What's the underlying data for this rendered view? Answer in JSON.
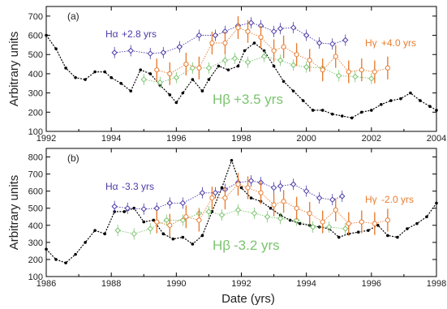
{
  "xlabel": "Date (yrs)",
  "chart_data": [
    {
      "type": "line",
      "panel_label": "(a)",
      "title": "",
      "xlabel": "",
      "ylabel": "Arbitrary units",
      "xlim": [
        1992,
        2004
      ],
      "ylim": [
        100,
        750
      ],
      "xticks": [
        1992,
        1994,
        1996,
        1998,
        2000,
        2002,
        2004
      ],
      "yticks": [
        100,
        200,
        300,
        400,
        500,
        600,
        700
      ],
      "grid": false,
      "series": [
        {
          "name": "",
          "color": "#000000",
          "marker": "filled-dot",
          "x": [
            1992.0,
            1992.3,
            1992.6,
            1992.9,
            1993.2,
            1993.5,
            1993.8,
            1994.0,
            1994.3,
            1994.6,
            1994.9,
            1995.2,
            1995.5,
            1995.8,
            1996.0,
            1996.2,
            1996.5,
            1996.8,
            1997.0,
            1997.3,
            1997.6,
            1997.9,
            1998.1,
            1998.4,
            1998.7,
            1999.0,
            1999.3,
            1999.6,
            1999.9,
            2000.2,
            2000.5,
            2000.8,
            2001.1,
            2001.4,
            2001.7,
            2002.0,
            2002.3,
            2002.6,
            2002.9,
            2003.2,
            2003.5,
            2003.8,
            2004.0
          ],
          "y": [
            600,
            530,
            430,
            380,
            370,
            410,
            410,
            380,
            350,
            310,
            420,
            400,
            340,
            290,
            250,
            300,
            370,
            310,
            370,
            440,
            420,
            440,
            520,
            560,
            520,
            440,
            360,
            310,
            260,
            210,
            210,
            190,
            180,
            170,
            200,
            210,
            240,
            260,
            270,
            300,
            260,
            230,
            210
          ]
        },
        {
          "name": "Hα",
          "label_text": "+2.8 yrs",
          "color": "#4b3ca8",
          "marker": "open-diamond",
          "x": [
            1994.1,
            1994.6,
            1995.2,
            1995.6,
            1996.1,
            1996.7,
            1997.2,
            1997.5,
            1997.9,
            1998.3,
            1998.6,
            1999.0,
            1999.2,
            1999.6,
            2000.0,
            2000.4,
            2000.8,
            2001.2
          ],
          "y": [
            510,
            520,
            505,
            510,
            540,
            600,
            600,
            620,
            650,
            665,
            650,
            620,
            635,
            640,
            600,
            560,
            555,
            575
          ]
        },
        {
          "name": "Hβ",
          "label_text": "+3.5 yrs",
          "color": "#7cc46f",
          "marker": "open-diamond",
          "x": [
            1995.0,
            1995.5,
            1996.0,
            1996.5,
            1997.0,
            1997.5,
            1997.8,
            1998.2,
            1998.7,
            1999.2,
            1999.6,
            2000.0,
            2000.5,
            2001.0,
            2001.5,
            2002.0
          ],
          "y": [
            370,
            355,
            380,
            430,
            430,
            470,
            480,
            460,
            490,
            470,
            445,
            435,
            430,
            390,
            385,
            375
          ]
        },
        {
          "name": "Hγ",
          "label_text": "+4.0 yrs",
          "color": "#e87e32",
          "marker": "open-circle",
          "x": [
            1995.4,
            1995.8,
            1996.3,
            1996.7,
            1997.1,
            1997.5,
            1997.9,
            1998.2,
            1998.6,
            1999.0,
            1999.3,
            1999.7,
            2000.1,
            2000.5,
            2000.9,
            2001.3,
            2001.7,
            2002.1,
            2002.5
          ],
          "y": [
            420,
            400,
            450,
            430,
            560,
            560,
            640,
            620,
            590,
            520,
            540,
            500,
            470,
            420,
            490,
            410,
            420,
            410,
            430
          ]
        }
      ]
    },
    {
      "type": "line",
      "panel_label": "(b)",
      "title": "",
      "xlabel": "Date (yrs)",
      "ylabel": "Arbitrary units",
      "xlim": [
        1986,
        1998
      ],
      "ylim": [
        100,
        850
      ],
      "xticks": [
        1986,
        1988,
        1990,
        1992,
        1994,
        1996,
        1998
      ],
      "yticks": [
        100,
        200,
        300,
        400,
        500,
        600,
        700,
        800
      ],
      "grid": false,
      "series": [
        {
          "name": "",
          "color": "#000000",
          "marker": "filled-dot",
          "x": [
            1986.0,
            1986.3,
            1986.6,
            1986.9,
            1987.2,
            1987.5,
            1987.8,
            1988.1,
            1988.4,
            1988.7,
            1989.0,
            1989.3,
            1989.6,
            1989.9,
            1990.2,
            1990.5,
            1990.8,
            1991.1,
            1991.4,
            1991.7,
            1992.0,
            1992.3,
            1992.6,
            1992.9,
            1993.2,
            1993.5,
            1993.8,
            1994.1,
            1994.4,
            1994.7,
            1995.0,
            1995.3,
            1995.6,
            1995.9,
            1996.2,
            1996.5,
            1996.8,
            1997.1,
            1997.4,
            1997.7,
            1998.0
          ],
          "y": [
            260,
            200,
            180,
            230,
            300,
            370,
            350,
            480,
            480,
            500,
            420,
            430,
            350,
            320,
            330,
            290,
            340,
            480,
            620,
            780,
            620,
            560,
            540,
            500,
            460,
            430,
            410,
            400,
            390,
            380,
            330,
            350,
            360,
            370,
            400,
            340,
            330,
            380,
            410,
            450,
            530
          ]
        },
        {
          "name": "Hα",
          "label_text": "-3.3 yrs",
          "color": "#4b3ca8",
          "marker": "open-diamond",
          "x": [
            1988.1,
            1988.5,
            1989.0,
            1989.4,
            1989.8,
            1990.2,
            1990.8,
            1991.2,
            1991.5,
            1991.9,
            1992.3,
            1992.6,
            1993.0,
            1993.2,
            1993.6,
            1994.0,
            1994.4,
            1994.8,
            1995.1
          ],
          "y": [
            510,
            500,
            495,
            500,
            530,
            530,
            590,
            590,
            610,
            650,
            660,
            650,
            620,
            630,
            640,
            600,
            560,
            550,
            570
          ]
        },
        {
          "name": "Hβ",
          "label_text": "-3.2 yrs",
          "color": "#7cc46f",
          "marker": "open-diamond",
          "x": [
            1988.2,
            1988.7,
            1989.2,
            1989.7,
            1990.2,
            1990.7,
            1991.0,
            1991.4,
            1991.9,
            1992.4,
            1992.8,
            1993.2,
            1993.7,
            1994.2,
            1994.7,
            1995.2
          ],
          "y": [
            370,
            350,
            380,
            430,
            430,
            470,
            480,
            460,
            490,
            470,
            450,
            440,
            430,
            390,
            390,
            380
          ]
        },
        {
          "name": "Hγ",
          "label_text": "-2.0 yrs",
          "color": "#e87e32",
          "marker": "open-circle",
          "x": [
            1989.4,
            1989.8,
            1990.3,
            1990.7,
            1991.1,
            1991.5,
            1991.9,
            1992.2,
            1992.6,
            1993.0,
            1993.3,
            1993.7,
            1994.1,
            1994.5,
            1994.9,
            1995.3,
            1995.7,
            1996.1,
            1996.5
          ],
          "y": [
            420,
            400,
            450,
            430,
            560,
            560,
            640,
            620,
            590,
            520,
            540,
            500,
            470,
            420,
            490,
            410,
            420,
            410,
            430
          ]
        }
      ]
    }
  ]
}
